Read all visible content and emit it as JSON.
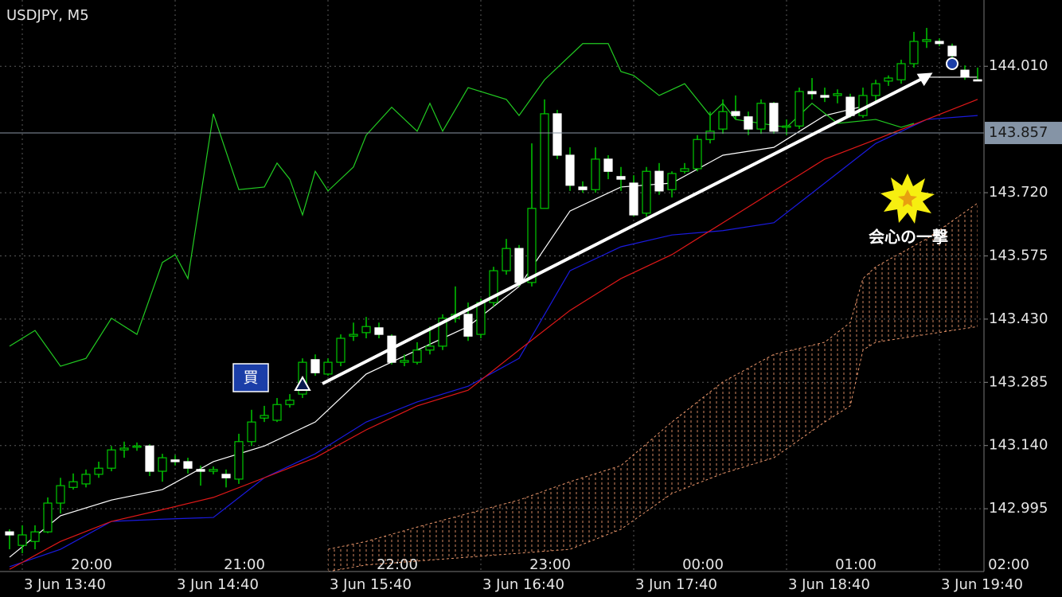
{
  "chart_data": {
    "type": "candlestick",
    "title": "USDJPY, M5",
    "open": [
      142.942,
      142.911,
      142.92,
      142.942,
      143.008,
      143.044,
      143.052,
      143.074,
      143.088,
      143.13,
      143.136,
      143.139,
      143.081,
      143.107,
      143.103,
      143.085,
      143.081,
      143.074,
      143.063,
      143.149,
      143.203,
      143.198,
      143.234,
      143.258,
      143.337,
      143.304,
      143.331,
      143.391,
      143.399,
      143.41,
      143.391,
      143.331,
      143.331,
      143.359,
      143.368,
      143.432,
      143.441,
      143.395,
      143.468,
      143.541,
      143.592,
      143.514,
      143.684,
      143.901,
      143.806,
      143.733,
      143.727,
      143.797,
      143.757,
      143.742,
      143.673,
      143.769,
      143.727,
      143.769,
      143.775,
      143.842,
      143.866,
      143.906,
      143.894,
      143.866,
      143.925,
      143.87,
      143.873,
      143.952,
      143.943,
      143.943,
      143.939,
      143.897,
      143.943,
      143.976,
      143.979,
      144.016,
      144.067,
      144.067,
      144.056,
      144.001,
      143.979
    ],
    "high": [
      142.948,
      142.957,
      142.957,
      143.021,
      143.066,
      143.076,
      143.085,
      143.103,
      143.139,
      143.149,
      143.147,
      143.143,
      143.121,
      143.118,
      143.112,
      143.094,
      143.092,
      143.085,
      143.167,
      143.222,
      143.231,
      143.249,
      143.258,
      143.34,
      143.349,
      143.34,
      143.395,
      143.422,
      143.435,
      143.422,
      143.395,
      143.349,
      143.377,
      143.413,
      143.441,
      143.505,
      143.468,
      143.477,
      143.55,
      143.614,
      143.6,
      143.833,
      143.934,
      143.91,
      143.824,
      143.746,
      143.824,
      143.806,
      143.779,
      143.76,
      143.779,
      143.788,
      143.769,
      143.788,
      143.852,
      143.906,
      143.934,
      143.943,
      143.906,
      143.934,
      143.928,
      143.888,
      143.961,
      143.983,
      143.961,
      143.957,
      143.947,
      143.961,
      143.979,
      143.989,
      144.025,
      144.089,
      144.098,
      144.074,
      144.062,
      144.012,
      144.007
    ],
    "low": [
      142.902,
      142.893,
      142.902,
      142.939,
      142.984,
      143.039,
      143.044,
      143.066,
      143.081,
      143.112,
      143.128,
      143.07,
      143.057,
      143.094,
      143.076,
      143.048,
      143.074,
      143.044,
      143.052,
      143.139,
      143.194,
      143.194,
      143.227,
      143.249,
      143.3,
      143.3,
      143.322,
      143.38,
      143.386,
      143.386,
      143.326,
      143.322,
      143.326,
      143.349,
      143.359,
      143.422,
      143.38,
      143.386,
      143.459,
      143.532,
      143.505,
      143.505,
      143.684,
      143.797,
      143.724,
      143.72,
      143.72,
      143.751,
      143.724,
      143.665,
      143.665,
      143.715,
      143.709,
      143.764,
      143.769,
      143.833,
      143.855,
      143.888,
      143.852,
      143.855,
      143.855,
      143.852,
      143.866,
      143.934,
      143.928,
      143.925,
      143.892,
      143.892,
      143.925,
      143.965,
      143.97,
      144.007,
      144.052,
      144.056,
      144.012,
      143.979,
      143.977
    ],
    "close": [
      142.935,
      142.935,
      142.942,
      143.008,
      143.048,
      143.057,
      143.074,
      143.088,
      143.13,
      143.134,
      143.139,
      143.081,
      143.112,
      143.103,
      143.088,
      143.081,
      143.085,
      143.066,
      143.149,
      143.194,
      143.209,
      143.234,
      143.244,
      143.331,
      143.307,
      143.331,
      143.386,
      143.395,
      143.413,
      143.395,
      143.331,
      143.335,
      143.359,
      143.368,
      143.432,
      143.441,
      143.391,
      143.468,
      143.541,
      143.592,
      143.514,
      143.684,
      143.901,
      143.806,
      143.737,
      143.727,
      143.797,
      143.769,
      143.751,
      143.669,
      143.769,
      143.724,
      143.764,
      143.775,
      143.842,
      143.861,
      143.906,
      143.897,
      143.866,
      143.925,
      143.861,
      143.873,
      143.952,
      143.947,
      143.939,
      143.947,
      143.897,
      143.943,
      143.97,
      143.983,
      144.016,
      144.067,
      144.071,
      144.062,
      144.034,
      143.985,
      143.978
    ],
    "up_color": "#000000",
    "down_color": "#ffffff",
    "wick_color": "#00c800",
    "ylim": [
      142.851,
      144.162
    ],
    "yticks": [
      {
        "value": 144.01,
        "label": "144.010"
      },
      {
        "value": 143.72,
        "label": "143.720"
      },
      143.575,
      {
        "value": 143.43,
        "label": "143.430"
      },
      143.285,
      {
        "value": 143.14,
        "label": "143.140"
      },
      142.995
    ],
    "current_price": 143.857,
    "x_labels_top": [
      "20:00",
      "21:00",
      "22:00",
      "23:00",
      "00:00",
      "01:00",
      "02:00"
    ],
    "x_labels_bottom": [
      "3 Jun 13:40",
      "3 Jun 14:40",
      "3 Jun 15:40",
      "3 Jun 16:40",
      "3 Jun 17:40",
      "3 Jun 18:40",
      "3 Jun 19:40"
    ],
    "lines": [
      {
        "color": "#ffffff",
        "x": [
          0,
          4,
          8,
          12,
          16,
          20,
          24,
          28,
          32,
          36,
          40,
          44,
          48,
          52,
          56,
          60,
          64,
          68,
          72,
          76
        ],
        "values": [
          142.884,
          142.979,
          143.015,
          143.039,
          143.103,
          143.139,
          143.194,
          143.304,
          143.359,
          143.413,
          143.505,
          143.678,
          143.733,
          143.742,
          143.806,
          143.824,
          143.897,
          143.925,
          143.985,
          143.985
        ]
      },
      {
        "color": "#1a1ae0",
        "x": [
          0,
          4,
          8,
          12,
          16,
          20,
          24,
          28,
          32,
          36,
          40,
          44,
          48,
          52,
          56,
          60,
          64,
          68,
          72,
          76
        ],
        "values": [
          142.862,
          142.902,
          142.966,
          142.971,
          142.975,
          143.066,
          143.121,
          143.194,
          143.24,
          143.276,
          143.34,
          143.541,
          143.596,
          143.623,
          143.633,
          143.651,
          143.742,
          143.833,
          143.888,
          143.897
        ]
      },
      {
        "color": "#e01818",
        "x": [
          0,
          4,
          8,
          12,
          16,
          20,
          24,
          28,
          32,
          36,
          40,
          44,
          48,
          52,
          56,
          60,
          64,
          68,
          72,
          76
        ],
        "values": [
          142.856,
          142.92,
          142.966,
          142.993,
          143.021,
          143.066,
          143.112,
          143.176,
          143.231,
          143.267,
          143.359,
          143.45,
          143.523,
          143.578,
          143.651,
          143.724,
          143.797,
          143.842,
          143.888,
          143.934
        ]
      },
      {
        "color": "#22cc22",
        "x": [
          0,
          2,
          4,
          6,
          8,
          10,
          12,
          13,
          14,
          16,
          18,
          20,
          21,
          22,
          23,
          24,
          25,
          27,
          28,
          30,
          32,
          33,
          34,
          36,
          39,
          40,
          42,
          45,
          47,
          48,
          49,
          51,
          53,
          55,
          56,
          57,
          61,
          63,
          65,
          68,
          70,
          71
        ],
        "values": [
          143.368,
          143.404,
          143.322,
          143.34,
          143.432,
          143.395,
          143.56,
          143.578,
          143.523,
          143.901,
          143.727,
          143.733,
          143.788,
          143.751,
          143.669,
          143.769,
          143.724,
          143.779,
          143.852,
          143.916,
          143.861,
          143.925,
          143.861,
          143.961,
          143.934,
          143.897,
          143.979,
          144.062,
          144.062,
          143.998,
          143.989,
          143.943,
          143.97,
          143.897,
          143.925,
          143.888,
          143.87,
          143.925,
          143.879,
          143.888,
          143.87,
          143.879
        ]
      }
    ],
    "cloud": {
      "color": "#e8956a",
      "x": [
        25,
        28,
        32,
        36,
        40,
        44,
        48,
        52,
        56,
        60,
        64,
        66,
        67,
        68,
        72,
        76
      ],
      "span_a": [
        142.902,
        142.92,
        142.953,
        142.984,
        143.015,
        143.057,
        143.094,
        143.194,
        143.286,
        143.349,
        143.377,
        143.422,
        143.523,
        143.55,
        143.614,
        143.696
      ],
      "span_b": [
        142.851,
        142.866,
        142.875,
        142.884,
        142.893,
        142.902,
        142.948,
        143.03,
        143.076,
        143.112,
        143.194,
        143.231,
        143.359,
        143.377,
        143.395,
        143.413
      ]
    },
    "buy_label": "買",
    "annotation": "会心の一撃"
  }
}
